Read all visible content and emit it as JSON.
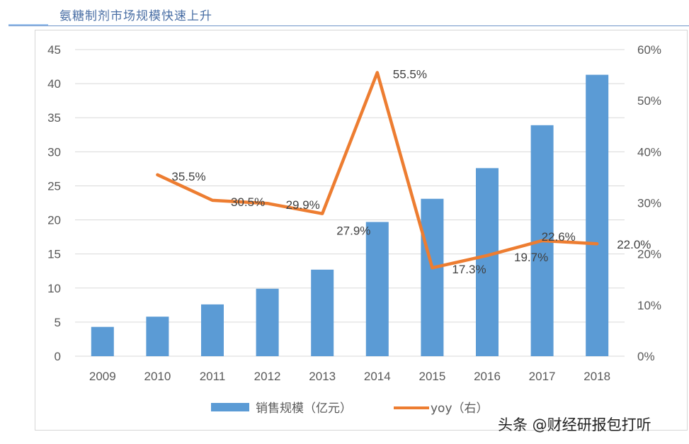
{
  "header": {
    "title": "氨糖制剂市场规模快速上升"
  },
  "watermark": {
    "text": "头条 @财经研报包打听"
  },
  "colors": {
    "bar": "#5b9bd5",
    "line": "#ed7d31",
    "grid": "#d9d9d9",
    "header": "#4a6fa5"
  },
  "chart_data": {
    "type": "bar",
    "title": "",
    "categories": [
      "2009",
      "2010",
      "2011",
      "2012",
      "2013",
      "2014",
      "2015",
      "2016",
      "2017",
      "2018"
    ],
    "series": [
      {
        "name": "销售规模（亿元）",
        "type": "bar",
        "axis": "left",
        "values": [
          4.3,
          5.8,
          7.6,
          9.9,
          12.7,
          19.7,
          23.1,
          27.6,
          33.9,
          41.3
        ]
      },
      {
        "name": "yoy（右）",
        "type": "line",
        "axis": "right",
        "values": [
          null,
          35.5,
          30.5,
          29.9,
          27.9,
          55.5,
          17.3,
          19.7,
          22.6,
          22.0
        ],
        "labels": [
          "",
          "35.5%",
          "30.5%",
          "29.9%",
          "27.9%",
          "55.5%",
          "17.3%",
          "19.7%",
          "22.6%",
          "22.0%"
        ]
      }
    ],
    "y_left": {
      "min": 0,
      "max": 45,
      "ticks": [
        "0",
        "5",
        "10",
        "15",
        "20",
        "25",
        "30",
        "35",
        "40",
        "45"
      ]
    },
    "y_right": {
      "min": 0,
      "max": 60,
      "ticks": [
        "0%",
        "10%",
        "20%",
        "30%",
        "40%",
        "50%",
        "60%"
      ]
    },
    "grid": true,
    "legend_position": "bottom"
  }
}
